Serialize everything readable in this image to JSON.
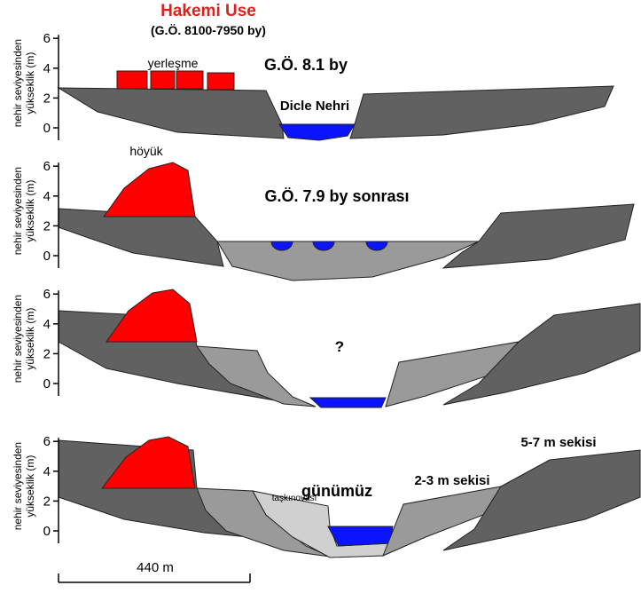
{
  "header": {
    "title": "Hakemi Use",
    "subtitle": "(G.Ö. 8100-7950 by)"
  },
  "panels": [
    {
      "y_label": [
        "nehir seviyesinden",
        "yükseklik (m)"
      ],
      "yticks": [
        0,
        2,
        4,
        6
      ],
      "labels": [
        "yerleşme",
        "G.Ö. 8.1 by",
        "Dicle Nehri"
      ]
    },
    {
      "y_label": [
        "nehir seviyesinden",
        "yükseklik (m)"
      ],
      "yticks": [
        0,
        2,
        4,
        6
      ],
      "labels": [
        "höyük",
        "G.Ö. 7.9 by sonrası"
      ]
    },
    {
      "y_label": [
        "nehir seviyesinden",
        "yükseklik (m)"
      ],
      "yticks": [
        0,
        2,
        4,
        6
      ],
      "labels": [
        "?"
      ]
    },
    {
      "y_label": [
        "nehir seviyesinden",
        "yükseklik (m)"
      ],
      "yticks": [
        0,
        2,
        4,
        6
      ],
      "labels": [
        "günümüz",
        "2-3 m sekisi",
        "5-7 m sekisi",
        "taşkınovası"
      ]
    }
  ],
  "scale_bar": "440 m"
}
